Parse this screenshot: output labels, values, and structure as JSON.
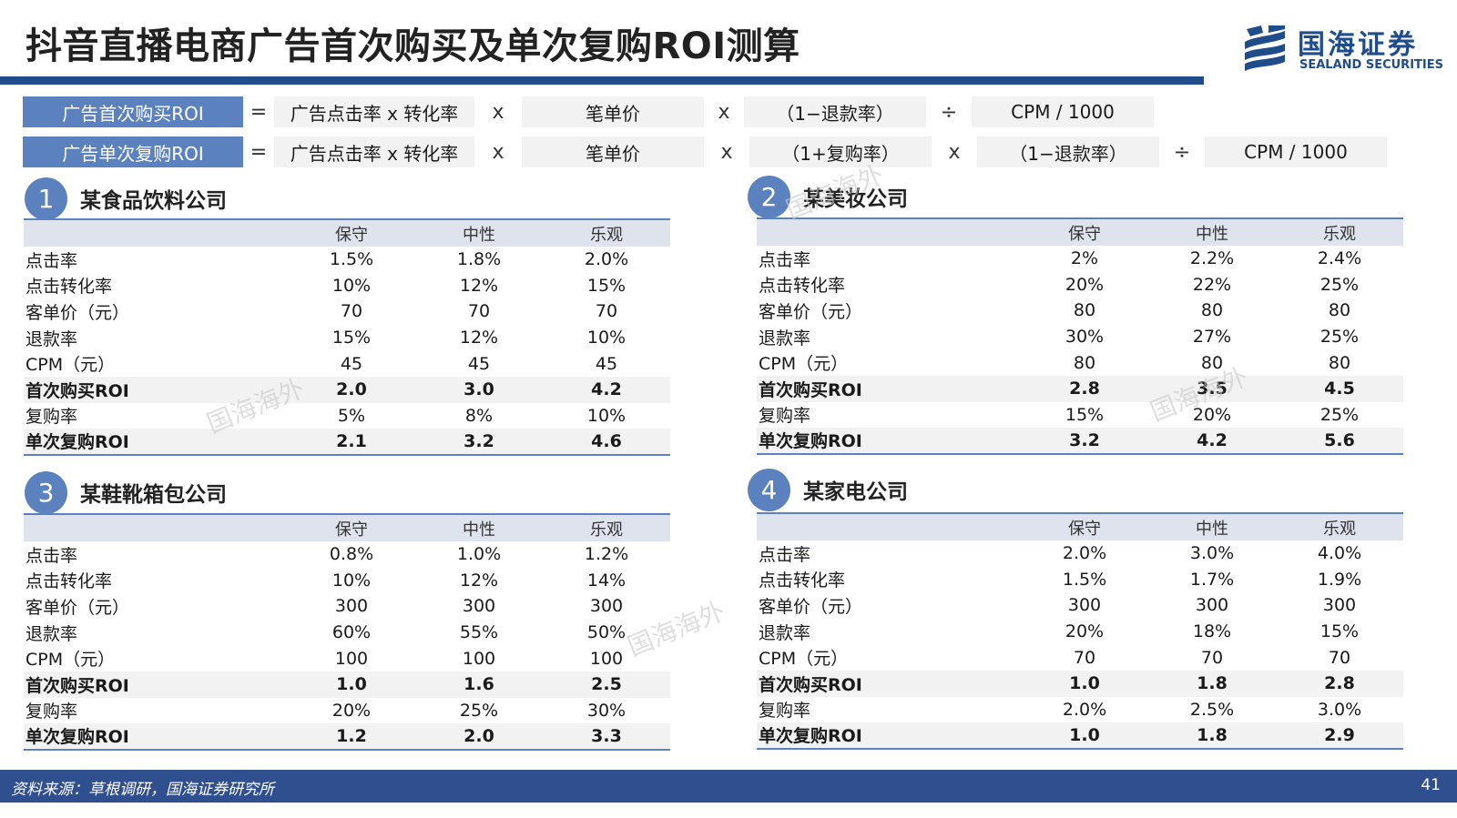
{
  "title": "抖音直播电商广告首次购买及单次复购ROI测算",
  "logo": {
    "cn": "国海证券",
    "en": "SEALAND SECURITIES"
  },
  "formulas": [
    {
      "label": "广告首次购买ROI",
      "eq": "=",
      "terms": [
        "广告点击率 x 转化率",
        "笔单价",
        "（1−退款率）",
        "CPM / 1000"
      ],
      "ops": [
        "x",
        "x",
        "÷"
      ]
    },
    {
      "label": "广告单次复购ROI",
      "eq": "=",
      "terms": [
        "广告点击率 x 转化率",
        "笔单价",
        "（1+复购率）",
        "（1−退款率）",
        "CPM / 1000"
      ],
      "ops": [
        "x",
        "x",
        "x",
        "÷"
      ]
    }
  ],
  "columns": [
    "保守",
    "中性",
    "乐观"
  ],
  "sections": [
    {
      "num": "1",
      "title": "某食品饮料公司",
      "rows": [
        {
          "label": "点击率",
          "values": [
            "1.5%",
            "1.8%",
            "2.0%"
          ],
          "bold": false
        },
        {
          "label": "点击转化率",
          "values": [
            "10%",
            "12%",
            "15%"
          ],
          "bold": false
        },
        {
          "label": "客单价（元）",
          "values": [
            "70",
            "70",
            "70"
          ],
          "bold": false
        },
        {
          "label": "退款率",
          "values": [
            "15%",
            "12%",
            "10%"
          ],
          "bold": false
        },
        {
          "label": "CPM（元）",
          "values": [
            "45",
            "45",
            "45"
          ],
          "bold": false
        },
        {
          "label": "首次购买ROI",
          "values": [
            "2.0",
            "3.0",
            "4.2"
          ],
          "bold": true
        },
        {
          "label": "复购率",
          "values": [
            "5%",
            "8%",
            "10%"
          ],
          "bold": false
        },
        {
          "label": "单次复购ROI",
          "values": [
            "2.1",
            "3.2",
            "4.6"
          ],
          "bold": true
        }
      ]
    },
    {
      "num": "2",
      "title": "某美妆公司",
      "rows": [
        {
          "label": "点击率",
          "values": [
            "2%",
            "2.2%",
            "2.4%"
          ],
          "bold": false
        },
        {
          "label": "点击转化率",
          "values": [
            "20%",
            "22%",
            "25%"
          ],
          "bold": false
        },
        {
          "label": "客单价（元）",
          "values": [
            "80",
            "80",
            "80"
          ],
          "bold": false
        },
        {
          "label": "退款率",
          "values": [
            "30%",
            "27%",
            "25%"
          ],
          "bold": false
        },
        {
          "label": "CPM（元）",
          "values": [
            "80",
            "80",
            "80"
          ],
          "bold": false
        },
        {
          "label": "首次购买ROI",
          "values": [
            "2.8",
            "3.5",
            "4.5"
          ],
          "bold": true
        },
        {
          "label": "复购率",
          "values": [
            "15%",
            "20%",
            "25%"
          ],
          "bold": false
        },
        {
          "label": "单次复购ROI",
          "values": [
            "3.2",
            "4.2",
            "5.6"
          ],
          "bold": true
        }
      ]
    },
    {
      "num": "3",
      "title": "某鞋靴箱包公司",
      "rows": [
        {
          "label": "点击率",
          "values": [
            "0.8%",
            "1.0%",
            "1.2%"
          ],
          "bold": false
        },
        {
          "label": "点击转化率",
          "values": [
            "10%",
            "12%",
            "14%"
          ],
          "bold": false
        },
        {
          "label": "客单价（元）",
          "values": [
            "300",
            "300",
            "300"
          ],
          "bold": false
        },
        {
          "label": "退款率",
          "values": [
            "60%",
            "55%",
            "50%"
          ],
          "bold": false
        },
        {
          "label": "CPM（元）",
          "values": [
            "100",
            "100",
            "100"
          ],
          "bold": false
        },
        {
          "label": "首次购买ROI",
          "values": [
            "1.0",
            "1.6",
            "2.5"
          ],
          "bold": true
        },
        {
          "label": "复购率",
          "values": [
            "20%",
            "25%",
            "30%"
          ],
          "bold": false
        },
        {
          "label": "单次复购ROI",
          "values": [
            "1.2",
            "2.0",
            "3.3"
          ],
          "bold": true
        }
      ]
    },
    {
      "num": "4",
      "title": "某家电公司",
      "rows": [
        {
          "label": "点击率",
          "values": [
            "2.0%",
            "3.0%",
            "4.0%"
          ],
          "bold": false
        },
        {
          "label": "点击转化率",
          "values": [
            "1.5%",
            "1.7%",
            "1.9%"
          ],
          "bold": false
        },
        {
          "label": "客单价（元）",
          "values": [
            "300",
            "300",
            "300"
          ],
          "bold": false
        },
        {
          "label": "退款率",
          "values": [
            "20%",
            "18%",
            "15%"
          ],
          "bold": false
        },
        {
          "label": "CPM（元）",
          "values": [
            "70",
            "70",
            "70"
          ],
          "bold": false
        },
        {
          "label": "首次购买ROI",
          "values": [
            "1.0",
            "1.8",
            "2.8"
          ],
          "bold": true
        },
        {
          "label": "复购率",
          "values": [
            "2.0%",
            "2.5%",
            "3.0%"
          ],
          "bold": false
        },
        {
          "label": "单次复购ROI",
          "values": [
            "1.0",
            "1.8",
            "2.9"
          ],
          "bold": true
        }
      ]
    }
  ],
  "watermark": "国海海外",
  "footer": {
    "source": "资料来源：草根调研，国海证券研究所",
    "page": "41"
  },
  "colors": {
    "primary": "#1f4d8c",
    "accent": "#5b82be",
    "header_bg": "#dfe3ee",
    "row_highlight": "#f2f2f2",
    "footer_bg": "#2f4f8f"
  }
}
